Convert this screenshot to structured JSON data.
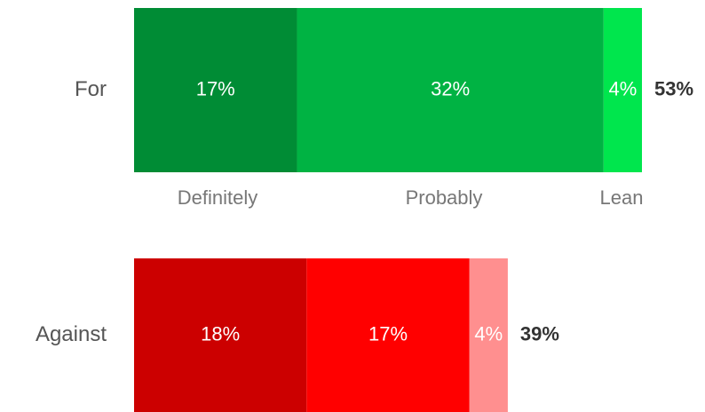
{
  "chart_data": {
    "type": "bar",
    "orientation": "horizontal",
    "stacked": true,
    "categories": [
      "Definitely",
      "Probably",
      "Lean"
    ],
    "rows": [
      {
        "label": "For",
        "values": [
          17,
          32,
          4
        ],
        "value_labels": [
          "17%",
          "32%",
          "4%"
        ],
        "total_label": "53%",
        "colors": [
          "#008c35",
          "#00b343",
          "#00e64d"
        ]
      },
      {
        "label": "Against",
        "values": [
          18,
          17,
          4
        ],
        "value_labels": [
          "18%",
          "17%",
          "4%"
        ],
        "total_label": "39%",
        "colors": [
          "#cc0000",
          "#ff0000",
          "#ff8f8f"
        ]
      }
    ],
    "xlim": [
      0,
      53
    ],
    "unit": "%",
    "grid": false,
    "legend": "category labels below first bar"
  }
}
